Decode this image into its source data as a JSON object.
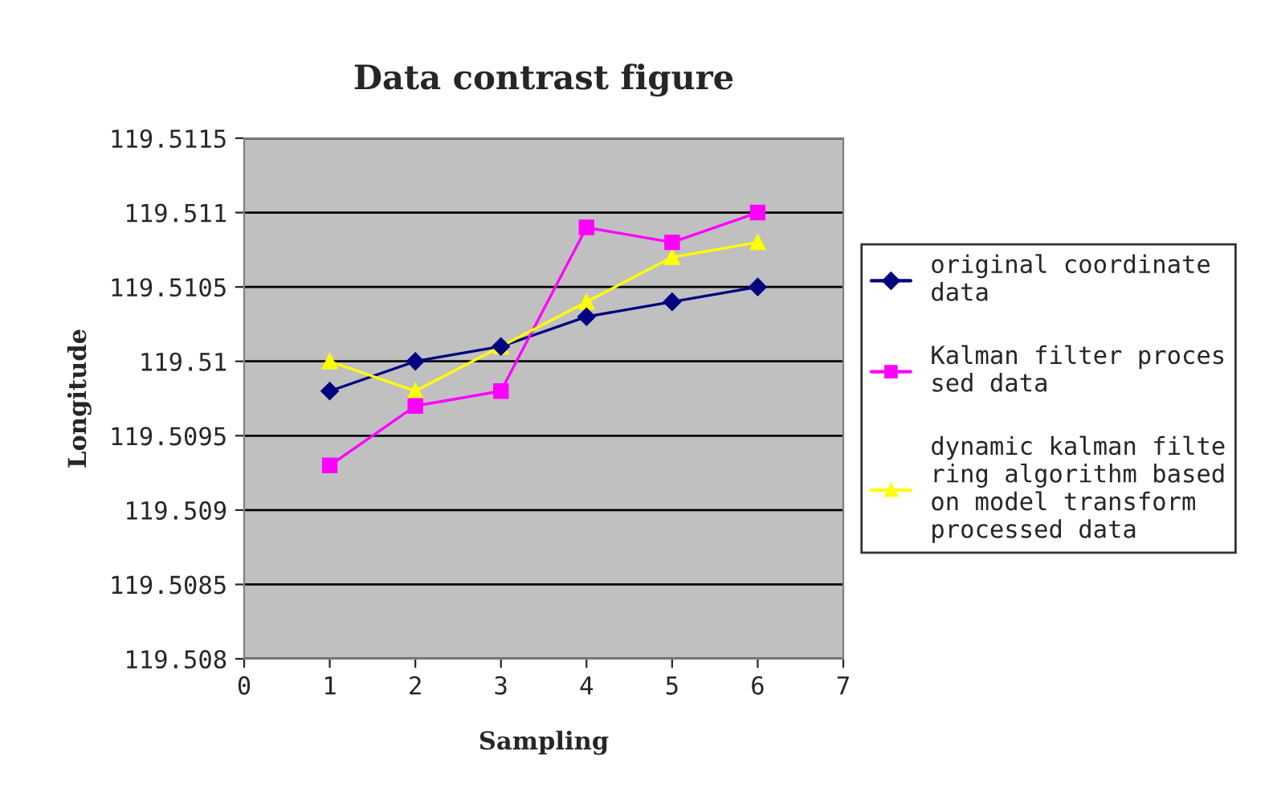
{
  "chart_data": {
    "type": "line",
    "title": "Data contrast figure",
    "xlabel": "Sampling",
    "ylabel": "Longitude",
    "x": [
      1,
      2,
      3,
      4,
      5,
      6
    ],
    "series": [
      {
        "name": "original coordinate data",
        "color": "#000080",
        "marker": "diamond",
        "values": [
          119.5098,
          119.51,
          119.5101,
          119.5103,
          119.5104,
          119.5105
        ]
      },
      {
        "name": "Kalman filter processed data",
        "color": "#ff00ff",
        "marker": "square",
        "values": [
          119.5093,
          119.5097,
          119.5098,
          119.5109,
          119.5108,
          119.511
        ]
      },
      {
        "name": "dynamic kalman filtering algorithm based on model transform processed data",
        "color": "#ffff00",
        "marker": "triangle",
        "values": [
          119.51,
          119.5098,
          119.5101,
          119.5104,
          119.5107,
          119.5108
        ]
      }
    ],
    "xlim": [
      0,
      7
    ],
    "xticks": [
      0,
      1,
      2,
      3,
      4,
      5,
      6,
      7
    ],
    "ylim": [
      119.508,
      119.5115
    ],
    "yticks": [
      119.508,
      119.5085,
      119.509,
      119.5095,
      119.51,
      119.5105,
      119.511,
      119.5115
    ],
    "grid": "y",
    "legend": "right",
    "line_style": "solid"
  }
}
